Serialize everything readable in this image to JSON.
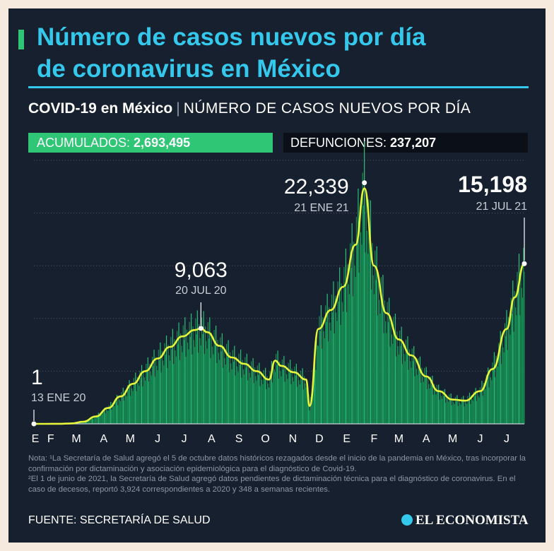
{
  "title_line1": "Número de casos nuevos por día",
  "title_line2": "de coronavirus en México",
  "subtitle_bold": "COVID-19 en México",
  "subtitle_sep": "|",
  "subtitle_rest": "NÚMERO DE CASOS NUEVOS POR DÍA",
  "acumulados_label": "ACUMULADOS:",
  "acumulados_value": "2,693,495",
  "defunciones_label": "DEFUNCIONES:",
  "defunciones_value": "237,207",
  "notes": [
    "Nota: ¹La Secretaría de Salud agregó el 5 de octubre datos históricos rezagados desde el inicio de la pandemia en México, tras incorporar la confirmación por dictaminación y asociación epidemiológica para el diagnóstico de Covid-19.",
    "²El 1 de junio de 2021, la Secretaría de Salud agregó datos pendientes de dictaminación técnica para el diagnóstico de coronavirus. En el caso de decesos, reportó 3,924 correspondientes a 2020 y 348 a semanas recientes."
  ],
  "source": "FUENTE: SECRETARÍA DE SALUD",
  "brand": "EL ECONOMISTA",
  "colors": {
    "accent": "#33c8ec",
    "bars": "#1fa567",
    "line": "#e6f53a",
    "background": "#17202e"
  },
  "chart_data": {
    "type": "bar",
    "title": "",
    "xlabel": "",
    "ylabel": "",
    "ylim": [
      0,
      25000
    ],
    "grid": true,
    "x_month_labels": [
      "E",
      "F",
      "M",
      "A",
      "M",
      "J",
      "J",
      "A",
      "S",
      "O",
      "N",
      "D",
      "E",
      "F",
      "M",
      "A",
      "M",
      "J",
      "J"
    ],
    "series": [
      {
        "name": "",
        "note": "smoothed 7-day average line (weekly points)",
        "x": [
          "2020-01-13",
          "2020-01-27",
          "2020-02-10",
          "2020-02-24",
          "2020-03-09",
          "2020-03-23",
          "2020-04-06",
          "2020-04-20",
          "2020-05-04",
          "2020-05-18",
          "2020-06-01",
          "2020-06-15",
          "2020-06-29",
          "2020-07-13",
          "2020-07-20",
          "2020-07-27",
          "2020-08-10",
          "2020-08-24",
          "2020-09-07",
          "2020-09-21",
          "2020-10-05",
          "2020-10-12",
          "2020-10-19",
          "2020-11-02",
          "2020-11-16",
          "2020-11-20",
          "2020-11-30",
          "2020-12-14",
          "2020-12-28",
          "2021-01-11",
          "2021-01-21",
          "2021-02-01",
          "2021-02-15",
          "2021-03-01",
          "2021-03-15",
          "2021-04-01",
          "2021-04-15",
          "2021-05-01",
          "2021-05-15",
          "2021-06-01",
          "2021-06-15",
          "2021-07-01",
          "2021-07-10",
          "2021-07-21"
        ],
        "values": [
          1,
          1,
          5,
          40,
          200,
          700,
          1500,
          2600,
          3800,
          5000,
          6200,
          7300,
          8300,
          8900,
          9063,
          8700,
          7400,
          6300,
          5700,
          5000,
          4200,
          6000,
          5500,
          4900,
          4200,
          1700,
          9000,
          10800,
          13000,
          17000,
          22339,
          15000,
          10500,
          8000,
          6500,
          4500,
          3100,
          2300,
          2200,
          3100,
          5200,
          9000,
          12000,
          15198
        ]
      }
    ],
    "annotations": [
      {
        "value": "1",
        "date": "13 ENE 20"
      },
      {
        "value": "9,063",
        "date": "20 JUL 20"
      },
      {
        "value": "22,339",
        "date": "21 ENE 21"
      },
      {
        "value": "15,198",
        "date": "21 JUL 21"
      }
    ]
  }
}
